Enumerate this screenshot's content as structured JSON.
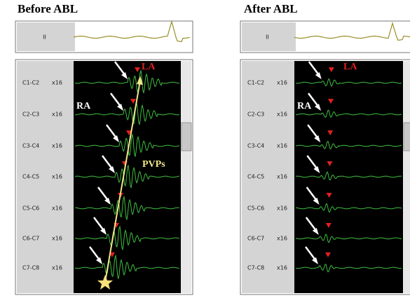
{
  "panels": [
    {
      "title": "Before ABL",
      "lead": "II",
      "channels": [
        {
          "name": "C1-C2",
          "gain": "x16"
        },
        {
          "name": "C2-C3",
          "gain": "x16"
        },
        {
          "name": "C3-C4",
          "gain": "x16"
        },
        {
          "name": "C4-C5",
          "gain": "x16"
        },
        {
          "name": "C5-C6",
          "gain": "x16"
        },
        {
          "name": "C6-C7",
          "gain": "x16"
        },
        {
          "name": "C7-C8",
          "gain": "x16"
        }
      ],
      "annotations": {
        "la": "LA",
        "ra": "RA",
        "pvps": "PVPs"
      }
    },
    {
      "title": "After ABL",
      "lead": "II",
      "channels": [
        {
          "name": "C1-C2",
          "gain": "x16"
        },
        {
          "name": "C2-C3",
          "gain": "x16"
        },
        {
          "name": "C3-C4",
          "gain": "x16"
        },
        {
          "name": "C4-C5",
          "gain": "x16"
        },
        {
          "name": "C5-C6",
          "gain": "x16"
        },
        {
          "name": "C6-C7",
          "gain": "x16"
        },
        {
          "name": "C7-C8",
          "gain": "x16"
        }
      ],
      "annotations": {
        "la": "LA",
        "ra": "RA"
      }
    }
  ]
}
